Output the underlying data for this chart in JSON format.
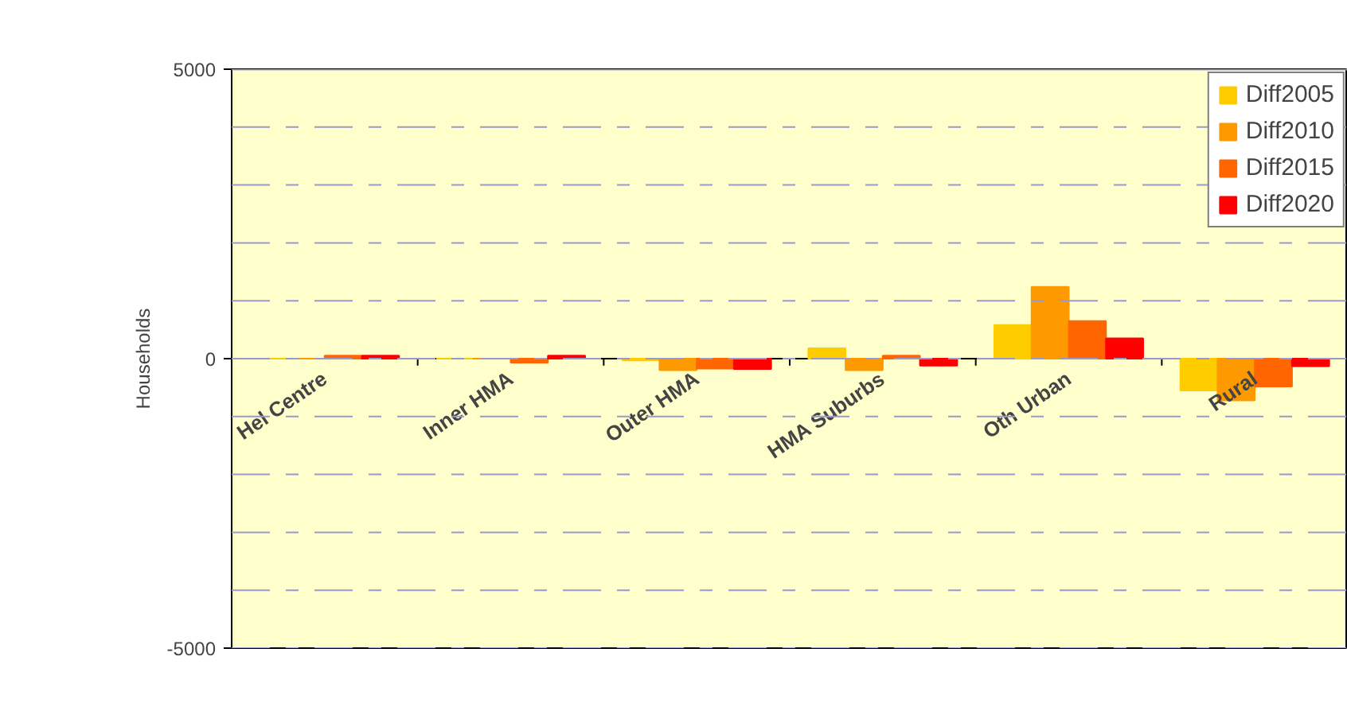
{
  "chart_data": {
    "type": "bar",
    "ylabel": "Households",
    "categories": [
      "Hel Centre",
      "Inner HMA",
      "Outer HMA",
      "HMA Suburbs",
      "Oth Urban",
      "Rural"
    ],
    "series": [
      {
        "name": "Diff2005",
        "color": "#ffcc00",
        "values": [
          0,
          0,
          -30,
          180,
          580,
          -550
        ]
      },
      {
        "name": "Diff2010",
        "color": "#ff9900",
        "values": [
          0,
          0,
          -200,
          -200,
          1240,
          -720
        ]
      },
      {
        "name": "Diff2015",
        "color": "#ff6600",
        "values": [
          50,
          -70,
          -170,
          50,
          650,
          -480
        ]
      },
      {
        "name": "Diff2020",
        "color": "#ff0000",
        "values": [
          50,
          50,
          -180,
          -120,
          350,
          -130
        ]
      }
    ],
    "ylim": [
      -5000,
      5000
    ],
    "yticks": [
      -5000,
      {
        "value": -4000,
        "label": null
      },
      {
        "value": -3000,
        "label": null
      },
      {
        "value": -2000,
        "label": null
      },
      {
        "value": -1000,
        "label": null
      },
      0,
      {
        "value": 1000,
        "label": null
      },
      {
        "value": 2000,
        "label": null
      },
      {
        "value": 3000,
        "label": null
      },
      {
        "value": 4000,
        "label": null
      },
      5000
    ],
    "grid": "y",
    "legend": "top right"
  }
}
